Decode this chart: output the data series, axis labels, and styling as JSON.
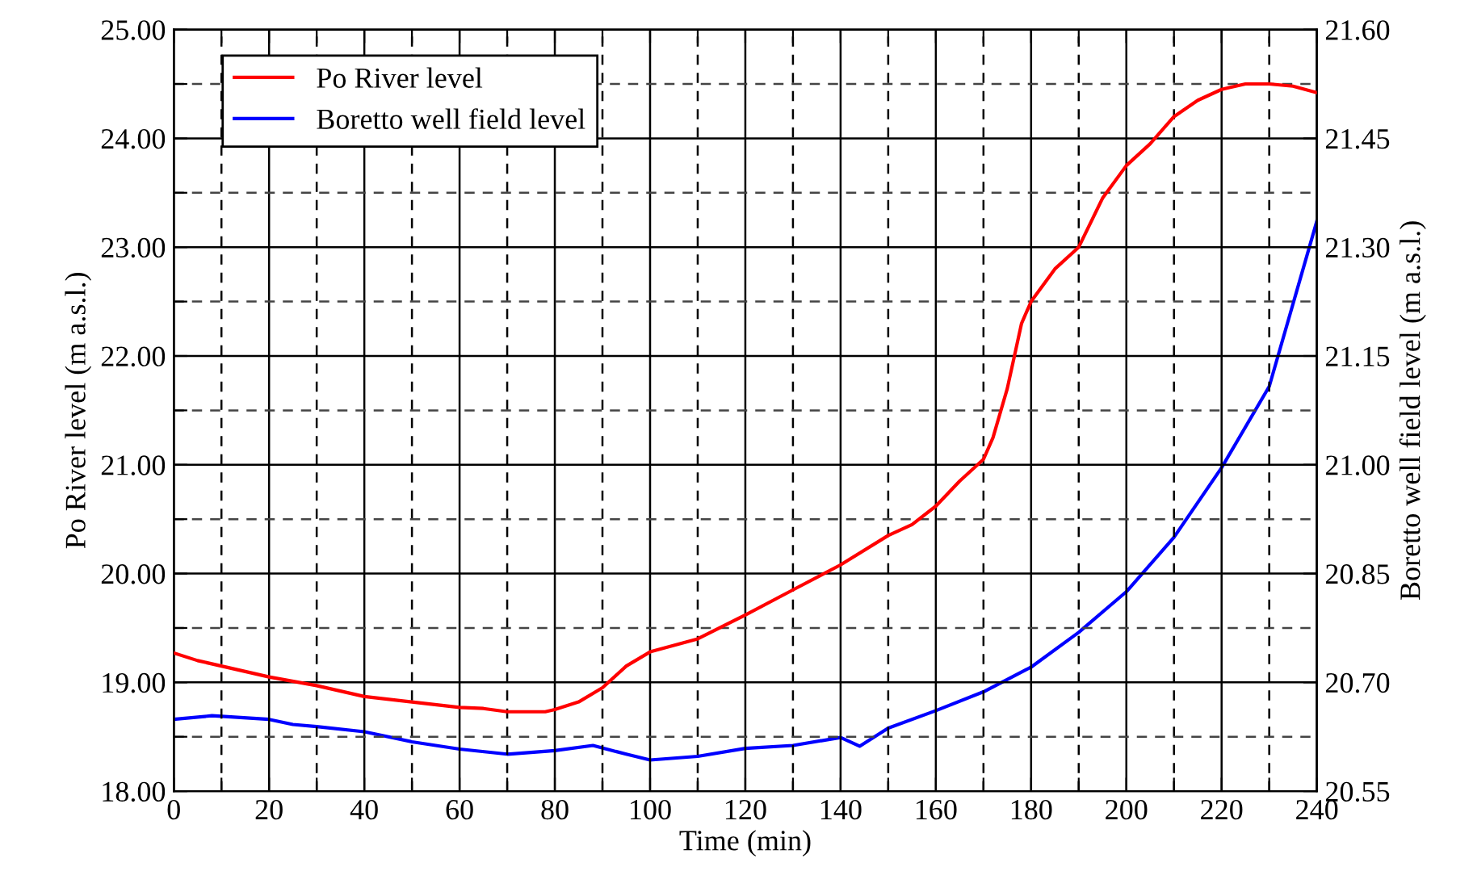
{
  "chart_data": {
    "type": "line",
    "xlabel": "Time (min)",
    "ylabel": "Po River level (m a.s.l.)",
    "y2label": "Boretto well field level (m a.s.l.)",
    "xlim": [
      0,
      240
    ],
    "xticks": [
      0,
      {
        "value": 10,
        "label": null
      },
      20,
      {
        "value": 30,
        "label": null
      },
      40,
      {
        "value": 50,
        "label": null
      },
      60,
      {
        "value": 70,
        "label": null
      },
      80,
      {
        "value": 90,
        "label": null
      },
      100,
      {
        "value": 110,
        "label": null
      },
      120,
      {
        "value": 130,
        "label": null
      },
      140,
      {
        "value": 150,
        "label": null
      },
      160,
      {
        "value": 170,
        "label": null
      },
      180,
      {
        "value": 190,
        "label": null
      },
      200,
      {
        "value": 210,
        "label": null
      },
      220,
      {
        "value": 230,
        "label": null
      },
      240
    ],
    "ylim": [
      18,
      25
    ],
    "yticks": [
      {
        "value": 18,
        "label": "18.00"
      },
      {
        "value": 18.5,
        "label": null
      },
      {
        "value": 19,
        "label": "19.00"
      },
      {
        "value": 19.5,
        "label": null
      },
      {
        "value": 20,
        "label": "20.00"
      },
      {
        "value": 20.5,
        "label": null
      },
      {
        "value": 21,
        "label": "21.00"
      },
      {
        "value": 21.5,
        "label": null
      },
      {
        "value": 22,
        "label": "22.00"
      },
      {
        "value": 22.5,
        "label": null
      },
      {
        "value": 23,
        "label": "23.00"
      },
      {
        "value": 23.5,
        "label": null
      },
      {
        "value": 24,
        "label": "24.00"
      },
      {
        "value": 24.5,
        "label": null
      },
      {
        "value": 25,
        "label": "25.00"
      }
    ],
    "y2lim": [
      20.55,
      21.6
    ],
    "y2ticks": [
      {
        "value": 20.55,
        "label": "20.55"
      },
      {
        "value": 20.7,
        "label": "20.70"
      },
      {
        "value": 20.85,
        "label": "20.85"
      },
      {
        "value": 21.0,
        "label": "21.00"
      },
      {
        "value": 21.15,
        "label": "21.15"
      },
      {
        "value": 21.3,
        "label": "21.30"
      },
      {
        "value": 21.45,
        "label": "21.45"
      },
      {
        "value": 21.6,
        "label": "21.60"
      }
    ],
    "grid": true,
    "legend": "top left",
    "series": [
      {
        "name": "Po River level",
        "color": "#ff0000",
        "x": [
          0,
          5,
          10,
          20,
          30,
          40,
          50,
          60,
          65,
          70,
          78,
          80,
          85,
          90,
          95,
          100,
          110,
          120,
          130,
          140,
          150,
          155,
          160,
          165,
          170,
          172,
          175,
          178,
          180,
          185,
          190,
          195,
          200,
          205,
          210,
          215,
          220,
          225,
          230,
          235,
          240
        ],
        "values": [
          19.27,
          19.2,
          19.15,
          19.05,
          18.97,
          18.87,
          18.82,
          18.77,
          18.76,
          18.73,
          18.73,
          18.75,
          18.82,
          18.95,
          19.15,
          19.28,
          19.4,
          19.62,
          19.85,
          20.08,
          20.35,
          20.45,
          20.62,
          20.85,
          21.05,
          21.25,
          21.7,
          22.3,
          22.5,
          22.8,
          23.0,
          23.45,
          23.75,
          23.95,
          24.2,
          24.35,
          24.45,
          24.5,
          24.5,
          24.48,
          24.42
        ]
      },
      {
        "name": "Boretto well field level",
        "color": "#0000ff",
        "axis": "y2",
        "x": [
          0,
          8,
          20,
          25,
          30,
          40,
          50,
          60,
          70,
          80,
          88,
          95,
          100,
          110,
          120,
          130,
          140,
          144,
          150,
          160,
          170,
          180,
          190,
          200,
          210,
          220,
          230,
          240
        ],
        "values": [
          20.649,
          20.654,
          20.649,
          20.642,
          20.639,
          20.632,
          20.618,
          20.608,
          20.601,
          20.606,
          20.613,
          20.601,
          20.593,
          20.598,
          20.609,
          20.613,
          20.624,
          20.612,
          20.637,
          20.661,
          20.687,
          20.721,
          20.769,
          20.825,
          20.9,
          20.996,
          21.108,
          21.336
        ]
      }
    ]
  }
}
